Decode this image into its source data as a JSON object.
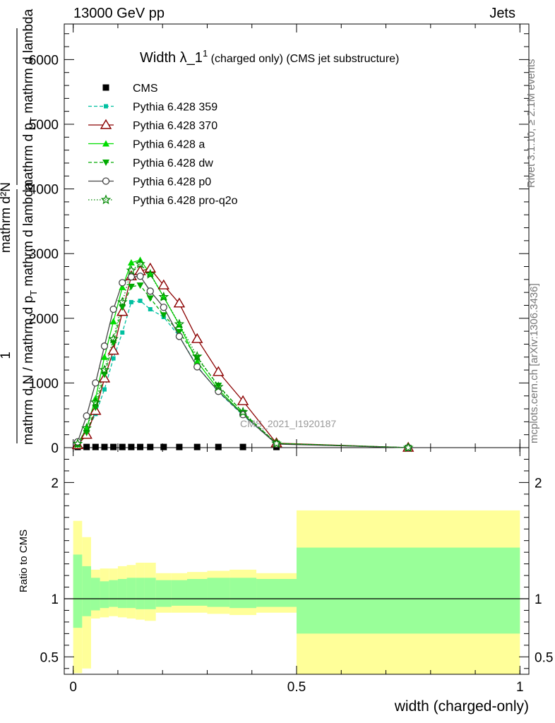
{
  "header": {
    "left": "13000 GeV pp",
    "right": "Jets"
  },
  "side_labels": {
    "rivet": "Rivet 3.1.10, ≥ 2.1M events",
    "mcplots": "mcplots.cern.ch [arXiv:1306.3436]"
  },
  "watermark": "CMS_2021_I1920187",
  "chart_data": {
    "type": "line",
    "title": "Width λ_1",
    "title_sup": "1",
    "subtitle": "(charged only) (CMS jet substructure)",
    "ylabel": {
      "frac_top": "mathrm d²N",
      "frac_bottom": "mathrm d p",
      "frac_bottom_sub": "T",
      "frac_bottom_tail": " mathrm d lambda",
      "prefix_one": "1",
      "prefix_bottom": "mathrm d N / mathrm d p",
      "prefix_bottom_tail": " mathrm d lambda"
    },
    "xlabel": "width (charged-only)",
    "ratio_ylabel": "Ratio to CMS",
    "xlim": [
      -0.02,
      1.02
    ],
    "ylim": [
      0,
      6550
    ],
    "ratio_ylim": [
      0.35,
      2.3
    ],
    "x_ticks": [
      0,
      0.5,
      1
    ],
    "x_tick_labels": [
      "0",
      "0.5",
      "1"
    ],
    "y_ticks": [
      0,
      1000,
      2000,
      3000,
      4000,
      5000,
      6000
    ],
    "y_tick_labels": [
      "0",
      "1000",
      "2000",
      "3000",
      "4000",
      "5000",
      "6000"
    ],
    "ratio_ticks": [
      0.5,
      1,
      2
    ],
    "ratio_tick_labels": [
      "0.5",
      "1",
      "2"
    ],
    "bin_edges": [
      0,
      0.02,
      0.04,
      0.06,
      0.08,
      0.1,
      0.12,
      0.14,
      0.16,
      0.185,
      0.22,
      0.255,
      0.3,
      0.35,
      0.41,
      0.5,
      1.0
    ],
    "x": [
      0.01,
      0.03,
      0.05,
      0.07,
      0.09,
      0.11,
      0.13,
      0.15,
      0.1725,
      0.2025,
      0.2375,
      0.2775,
      0.325,
      0.38,
      0.455,
      0.75
    ],
    "cms_values": [
      10,
      10,
      10,
      10,
      10,
      10,
      10,
      10,
      10,
      10,
      10,
      10,
      10,
      10,
      10,
      10
    ],
    "ratio_band_inner": [
      [
        0.75,
        1.38
      ],
      [
        0.85,
        1.28
      ],
      [
        0.9,
        1.18
      ],
      [
        0.92,
        1.15
      ],
      [
        0.93,
        1.16
      ],
      [
        0.92,
        1.17
      ],
      [
        0.92,
        1.18
      ],
      [
        0.91,
        1.18
      ],
      [
        0.91,
        1.18
      ],
      [
        0.93,
        1.16
      ],
      [
        0.94,
        1.16
      ],
      [
        0.94,
        1.17
      ],
      [
        0.93,
        1.18
      ],
      [
        0.92,
        1.18
      ],
      [
        0.93,
        1.17
      ],
      [
        0.7,
        1.44
      ]
    ],
    "ratio_band_outer": [
      [
        0.36,
        1.67
      ],
      [
        0.4,
        1.53
      ],
      [
        0.83,
        1.25
      ],
      [
        0.84,
        1.26
      ],
      [
        0.85,
        1.26
      ],
      [
        0.84,
        1.28
      ],
      [
        0.83,
        1.29
      ],
      [
        0.82,
        1.31
      ],
      [
        0.81,
        1.31
      ],
      [
        0.88,
        1.22
      ],
      [
        0.88,
        1.22
      ],
      [
        0.88,
        1.23
      ],
      [
        0.87,
        1.24
      ],
      [
        0.86,
        1.25
      ],
      [
        0.88,
        1.22
      ],
      [
        0.35,
        1.76
      ]
    ],
    "series": [
      {
        "name": "CMS",
        "color": "#000000",
        "marker": "square",
        "line": "none",
        "values": [
          10,
          10,
          10,
          10,
          10,
          10,
          10,
          10,
          10,
          10,
          10,
          10,
          10,
          10,
          10,
          10
        ]
      },
      {
        "name": "Pythia 6.428 359",
        "color": "#00c0a0",
        "marker": "square-small",
        "line": "dashed",
        "values": [
          60,
          240,
          520,
          900,
          1380,
          1780,
          2250,
          2270,
          2140,
          2020,
          1720,
          1260,
          860,
          500,
          60,
          0
        ]
      },
      {
        "name": "Pythia 6.428 370",
        "color": "#8b0000",
        "marker": "triangle-open",
        "line": "solid",
        "values": [
          40,
          200,
          570,
          1070,
          1500,
          2100,
          2650,
          2730,
          2770,
          2510,
          2230,
          1680,
          1170,
          720,
          70,
          0
        ]
      },
      {
        "name": "Pythia 6.428 a",
        "color": "#00dd00",
        "marker": "triangle",
        "line": "solid",
        "values": [
          50,
          300,
          760,
          1400,
          1950,
          2480,
          2860,
          2900,
          2690,
          2330,
          1900,
          1330,
          900,
          520,
          60,
          0
        ]
      },
      {
        "name": "Pythia 6.428 dw",
        "color": "#00aa00",
        "marker": "triangle-down",
        "line": "dashed",
        "values": [
          45,
          230,
          620,
          1130,
          1620,
          2170,
          2490,
          2510,
          2310,
          2050,
          1790,
          1390,
          960,
          540,
          65,
          0
        ]
      },
      {
        "name": "Pythia 6.428 p0",
        "color": "#444444",
        "marker": "circle-open",
        "line": "solid",
        "values": [
          90,
          490,
          1000,
          1570,
          2140,
          2550,
          2640,
          2650,
          2420,
          2170,
          1720,
          1250,
          870,
          510,
          55,
          0
        ]
      },
      {
        "name": "Pythia 6.428 pro-q2o",
        "color": "#008800",
        "marker": "star",
        "line": "dotted",
        "values": [
          60,
          300,
          700,
          1200,
          1680,
          2250,
          2740,
          2840,
          2680,
          2330,
          1910,
          1410,
          940,
          550,
          65,
          0
        ]
      }
    ]
  }
}
